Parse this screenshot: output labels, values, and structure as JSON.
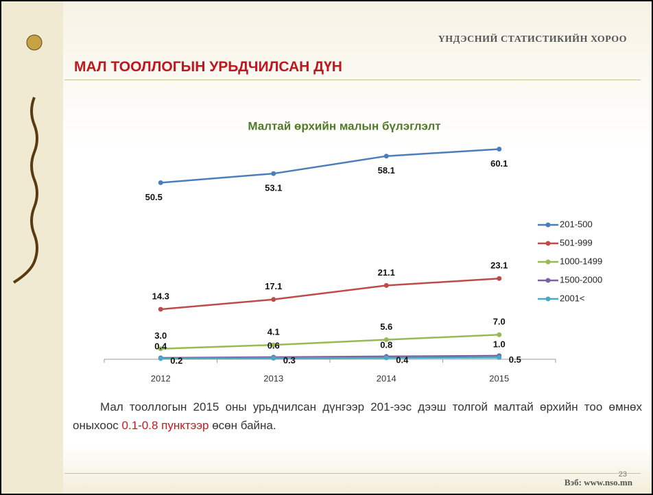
{
  "header": {
    "organization": "ҮНДЭСНИЙ СТАТИСТИКИЙН ХОРОО",
    "title": "МАЛ ТООЛЛОГЫН УРЬДЧИЛСАН ДҮН"
  },
  "chart_data": {
    "type": "line",
    "title": "Малтай өрхийн малын бүлэглэлт",
    "categories": [
      "2012",
      "2013",
      "2014",
      "2015"
    ],
    "ylim": [
      0,
      70
    ],
    "series": [
      {
        "name": "201-500",
        "color": "#4a7ebb",
        "values": [
          50.5,
          53.1,
          58.1,
          60.1
        ],
        "value_labels": [
          "50.5",
          "53.1",
          "58.1",
          "60.1"
        ]
      },
      {
        "name": "501-999",
        "color": "#be4b48",
        "values": [
          14.3,
          17.1,
          21.1,
          23.1
        ],
        "value_labels": [
          "14.3",
          "17.1",
          "21.1",
          "23.1"
        ]
      },
      {
        "name": "1000-1499",
        "color": "#98b954",
        "values": [
          3.0,
          4.1,
          5.6,
          7.0
        ],
        "value_labels": [
          "3.0",
          "4.1",
          "5.6",
          "7.0"
        ]
      },
      {
        "name": "1500-2000",
        "color": "#7d60a0",
        "values": [
          0.4,
          0.6,
          0.8,
          1.0
        ],
        "value_labels": [
          "0.4",
          "0.6",
          "0.8",
          "1.0"
        ]
      },
      {
        "name": "2001<",
        "color": "#46aac5",
        "values": [
          0.2,
          0.3,
          0.4,
          0.5
        ],
        "value_labels": [
          "0.2",
          "0.3",
          "0.4",
          "0.5"
        ]
      }
    ]
  },
  "text": [
    "Мал тооллогын 2015 оны урьдчилсан дүнгээр 201-ээс дээш толгой малтай өрхийн тоо өмнөх оныхоос ",
    "0.1-0.8 пунктээр",
    " өсөн  байна."
  ],
  "footer": {
    "website": "Вэб: www.nso.mn",
    "page": "23"
  }
}
